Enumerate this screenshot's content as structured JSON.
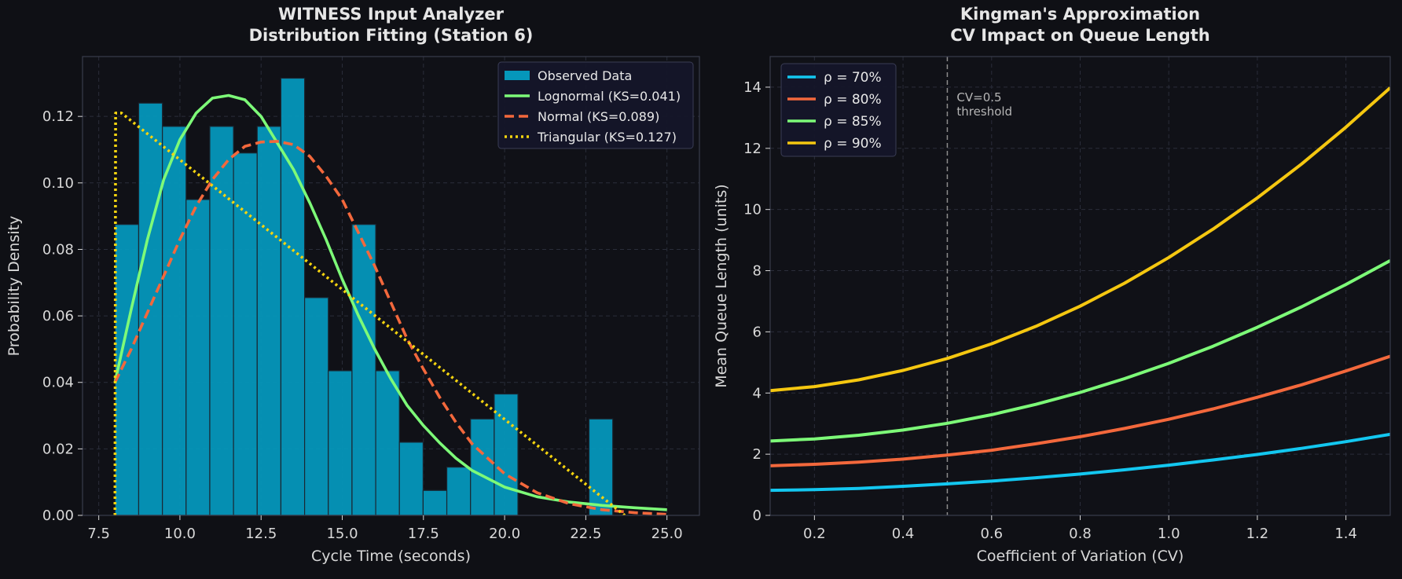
{
  "colors": {
    "background": "#0f1015",
    "axes_face": "#101117",
    "spine": "#3a3d4c",
    "grid": "#2a2d3a",
    "text": "#d8d8d8",
    "bar_fill": "#0597bb",
    "bar_edge": "#1a2733",
    "legend_bg": "#151629",
    "legend_edge": "#3a3d55"
  },
  "chart_data": [
    {
      "type": "bar",
      "title": "WITNESS Input Analyzer\nDistribution Fitting (Station 6)",
      "xlabel": "Cycle Time (seconds)",
      "ylabel": "Probability Density",
      "xlim": [
        7.0,
        26.0
      ],
      "ylim": [
        0,
        0.138
      ],
      "xticks": [
        7.5,
        10.0,
        12.5,
        15.0,
        17.5,
        20.0,
        22.5,
        25.0
      ],
      "xtick_labels": [
        "7.5",
        "10.0",
        "12.5",
        "15.0",
        "17.5",
        "20.0",
        "22.5",
        "25.0"
      ],
      "yticks": [
        0,
        0.02,
        0.04,
        0.06,
        0.08,
        0.1,
        0.12
      ],
      "ytick_labels": [
        "0.00",
        "0.02",
        "0.04",
        "0.06",
        "0.08",
        "0.10",
        "0.12"
      ],
      "grid": true,
      "legend_position": "upper right",
      "histogram": {
        "name": "Observed Data",
        "color": "#0597bb",
        "bin_edges": [
          8.0,
          8.73,
          9.46,
          10.19,
          10.92,
          11.65,
          12.38,
          13.11,
          13.84,
          14.57,
          15.3,
          16.03,
          16.76,
          17.49,
          18.22,
          18.95,
          19.68,
          20.41,
          21.14,
          21.87,
          22.6,
          23.33,
          24.06
        ],
        "values": [
          0.0875,
          0.124,
          0.117,
          0.095,
          0.117,
          0.109,
          0.117,
          0.1315,
          0.0655,
          0.0435,
          0.0875,
          0.0435,
          0.022,
          0.0075,
          0.0145,
          0.029,
          0.0365,
          0,
          0,
          0,
          0.029,
          0
        ]
      },
      "series": [
        {
          "name": "Lognormal (KS=0.041)",
          "color": "#7dfa78",
          "style": "solid",
          "x": [
            8.0,
            8.5,
            9.0,
            9.5,
            10.0,
            10.5,
            11.0,
            11.5,
            12.0,
            12.5,
            13.0,
            13.5,
            14.0,
            14.5,
            15.0,
            15.5,
            16.0,
            16.5,
            17.0,
            17.5,
            18.0,
            18.5,
            19.0,
            20.0,
            21.0,
            22.0,
            23.0,
            24.0,
            25.0
          ],
          "y": [
            0.04,
            0.062,
            0.083,
            0.101,
            0.113,
            0.121,
            0.1255,
            0.1263,
            0.125,
            0.12,
            0.112,
            0.104,
            0.094,
            0.083,
            0.071,
            0.06,
            0.05,
            0.041,
            0.033,
            0.027,
            0.0218,
            0.0172,
            0.0135,
            0.0085,
            0.0056,
            0.004,
            0.003,
            0.0023,
            0.0017
          ]
        },
        {
          "name": "Normal (KS=0.089)",
          "color": "#f3683c",
          "style": "dashed",
          "x": [
            8.0,
            8.5,
            9.0,
            9.5,
            10.0,
            10.5,
            11.0,
            11.5,
            12.0,
            12.5,
            13.0,
            13.5,
            14.0,
            14.5,
            15.0,
            15.5,
            16.0,
            16.5,
            17.0,
            17.5,
            18.0,
            18.5,
            19.0,
            20.0,
            21.0,
            22.0,
            23.0,
            24.0,
            25.0
          ],
          "y": [
            0.04,
            0.05,
            0.061,
            0.072,
            0.083,
            0.093,
            0.101,
            0.107,
            0.111,
            0.1123,
            0.1125,
            0.1115,
            0.108,
            0.102,
            0.095,
            0.085,
            0.075,
            0.064,
            0.053,
            0.044,
            0.0355,
            0.028,
            0.0215,
            0.0125,
            0.0068,
            0.0035,
            0.0017,
            0.0008,
            0.0003
          ]
        },
        {
          "name": "Triangular (KS=0.127)",
          "color": "#f5d40f",
          "style": "dotted",
          "x": [
            8.0,
            8.02,
            8.2,
            23.7
          ],
          "y": [
            0,
            0.121,
            0.121,
            0.0
          ]
        }
      ]
    },
    {
      "type": "line",
      "title": "Kingman's Approximation\nCV Impact on Queue Length",
      "xlabel": "Coefficient of Variation (CV)",
      "ylabel": "Mean Queue Length (units)",
      "xlim": [
        0.1,
        1.5
      ],
      "ylim": [
        0,
        15
      ],
      "xticks": [
        0.2,
        0.4,
        0.6,
        0.8,
        1.0,
        1.2,
        1.4
      ],
      "xtick_labels": [
        "0.2",
        "0.4",
        "0.6",
        "0.8",
        "1.0",
        "1.2",
        "1.4"
      ],
      "yticks": [
        0,
        2,
        4,
        6,
        8,
        10,
        12,
        14
      ],
      "ytick_labels": [
        "0",
        "2",
        "4",
        "6",
        "8",
        "10",
        "12",
        "14"
      ],
      "grid": true,
      "legend_position": "upper left",
      "vline": {
        "x": 0.5,
        "label": "CV=0.5\nthreshold",
        "color": "#8c8c8c"
      },
      "series": [
        {
          "name": "ρ = 70%",
          "color": "#13c7f0",
          "x": [
            0.1,
            0.2,
            0.3,
            0.4,
            0.5,
            0.6,
            0.7,
            0.8,
            0.9,
            1.0,
            1.1,
            1.2,
            1.3,
            1.4,
            1.5
          ],
          "y": [
            0.82,
            0.84,
            0.88,
            0.95,
            1.03,
            1.12,
            1.23,
            1.35,
            1.49,
            1.64,
            1.81,
            1.99,
            2.19,
            2.41,
            2.65
          ]
        },
        {
          "name": "ρ = 80%",
          "color": "#f3683c",
          "x": [
            0.1,
            0.2,
            0.3,
            0.4,
            0.5,
            0.6,
            0.7,
            0.8,
            0.9,
            1.0,
            1.1,
            1.2,
            1.3,
            1.4,
            1.5
          ],
          "y": [
            1.62,
            1.67,
            1.74,
            1.84,
            1.97,
            2.13,
            2.34,
            2.57,
            2.84,
            3.14,
            3.48,
            3.86,
            4.27,
            4.72,
            5.2
          ]
        },
        {
          "name": "ρ = 85%",
          "color": "#7dfa78",
          "x": [
            0.1,
            0.2,
            0.3,
            0.4,
            0.5,
            0.6,
            0.7,
            0.8,
            0.9,
            1.0,
            1.1,
            1.2,
            1.3,
            1.4,
            1.5
          ],
          "y": [
            2.43,
            2.5,
            2.62,
            2.79,
            3.01,
            3.29,
            3.63,
            4.02,
            4.47,
            4.97,
            5.53,
            6.15,
            6.82,
            7.55,
            8.33
          ]
        },
        {
          "name": "ρ = 90%",
          "color": "#f5c710",
          "x": [
            0.1,
            0.2,
            0.3,
            0.4,
            0.5,
            0.6,
            0.7,
            0.8,
            0.9,
            1.0,
            1.1,
            1.2,
            1.3,
            1.4,
            1.5
          ],
          "y": [
            4.08,
            4.21,
            4.43,
            4.74,
            5.13,
            5.61,
            6.18,
            6.84,
            7.59,
            8.43,
            9.36,
            10.38,
            11.49,
            12.69,
            13.98
          ]
        }
      ]
    }
  ]
}
